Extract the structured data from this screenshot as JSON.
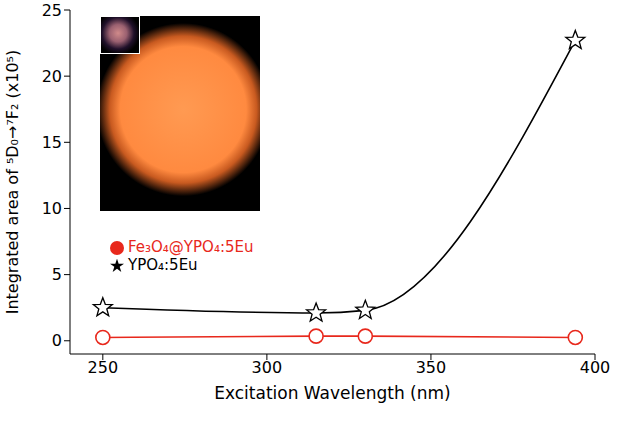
{
  "chart_data": {
    "type": "line",
    "x_label": "Excitation Wavelength (nm)",
    "y_label": "Integrated area of ⁵D₀→⁷F₂ (x10⁵)",
    "x": [
      250,
      315,
      330,
      394
    ],
    "series": [
      {
        "name": "YPO₄:5Eu",
        "color": "#000000",
        "marker": "star",
        "values": [
          2.5,
          2.1,
          2.3,
          22.7
        ]
      },
      {
        "name": "Fe₃O₄@YPO₄:5Eu",
        "color": "#e8281c",
        "marker": "circle",
        "values": [
          0.25,
          0.35,
          0.35,
          0.25
        ]
      }
    ],
    "xlim": [
      240,
      400
    ],
    "xticks": [
      250,
      300,
      350,
      400
    ],
    "ylim": [
      -1,
      25
    ],
    "yticks": [
      0,
      5,
      10,
      15,
      20,
      25
    ],
    "grid": false,
    "legend": "left"
  }
}
